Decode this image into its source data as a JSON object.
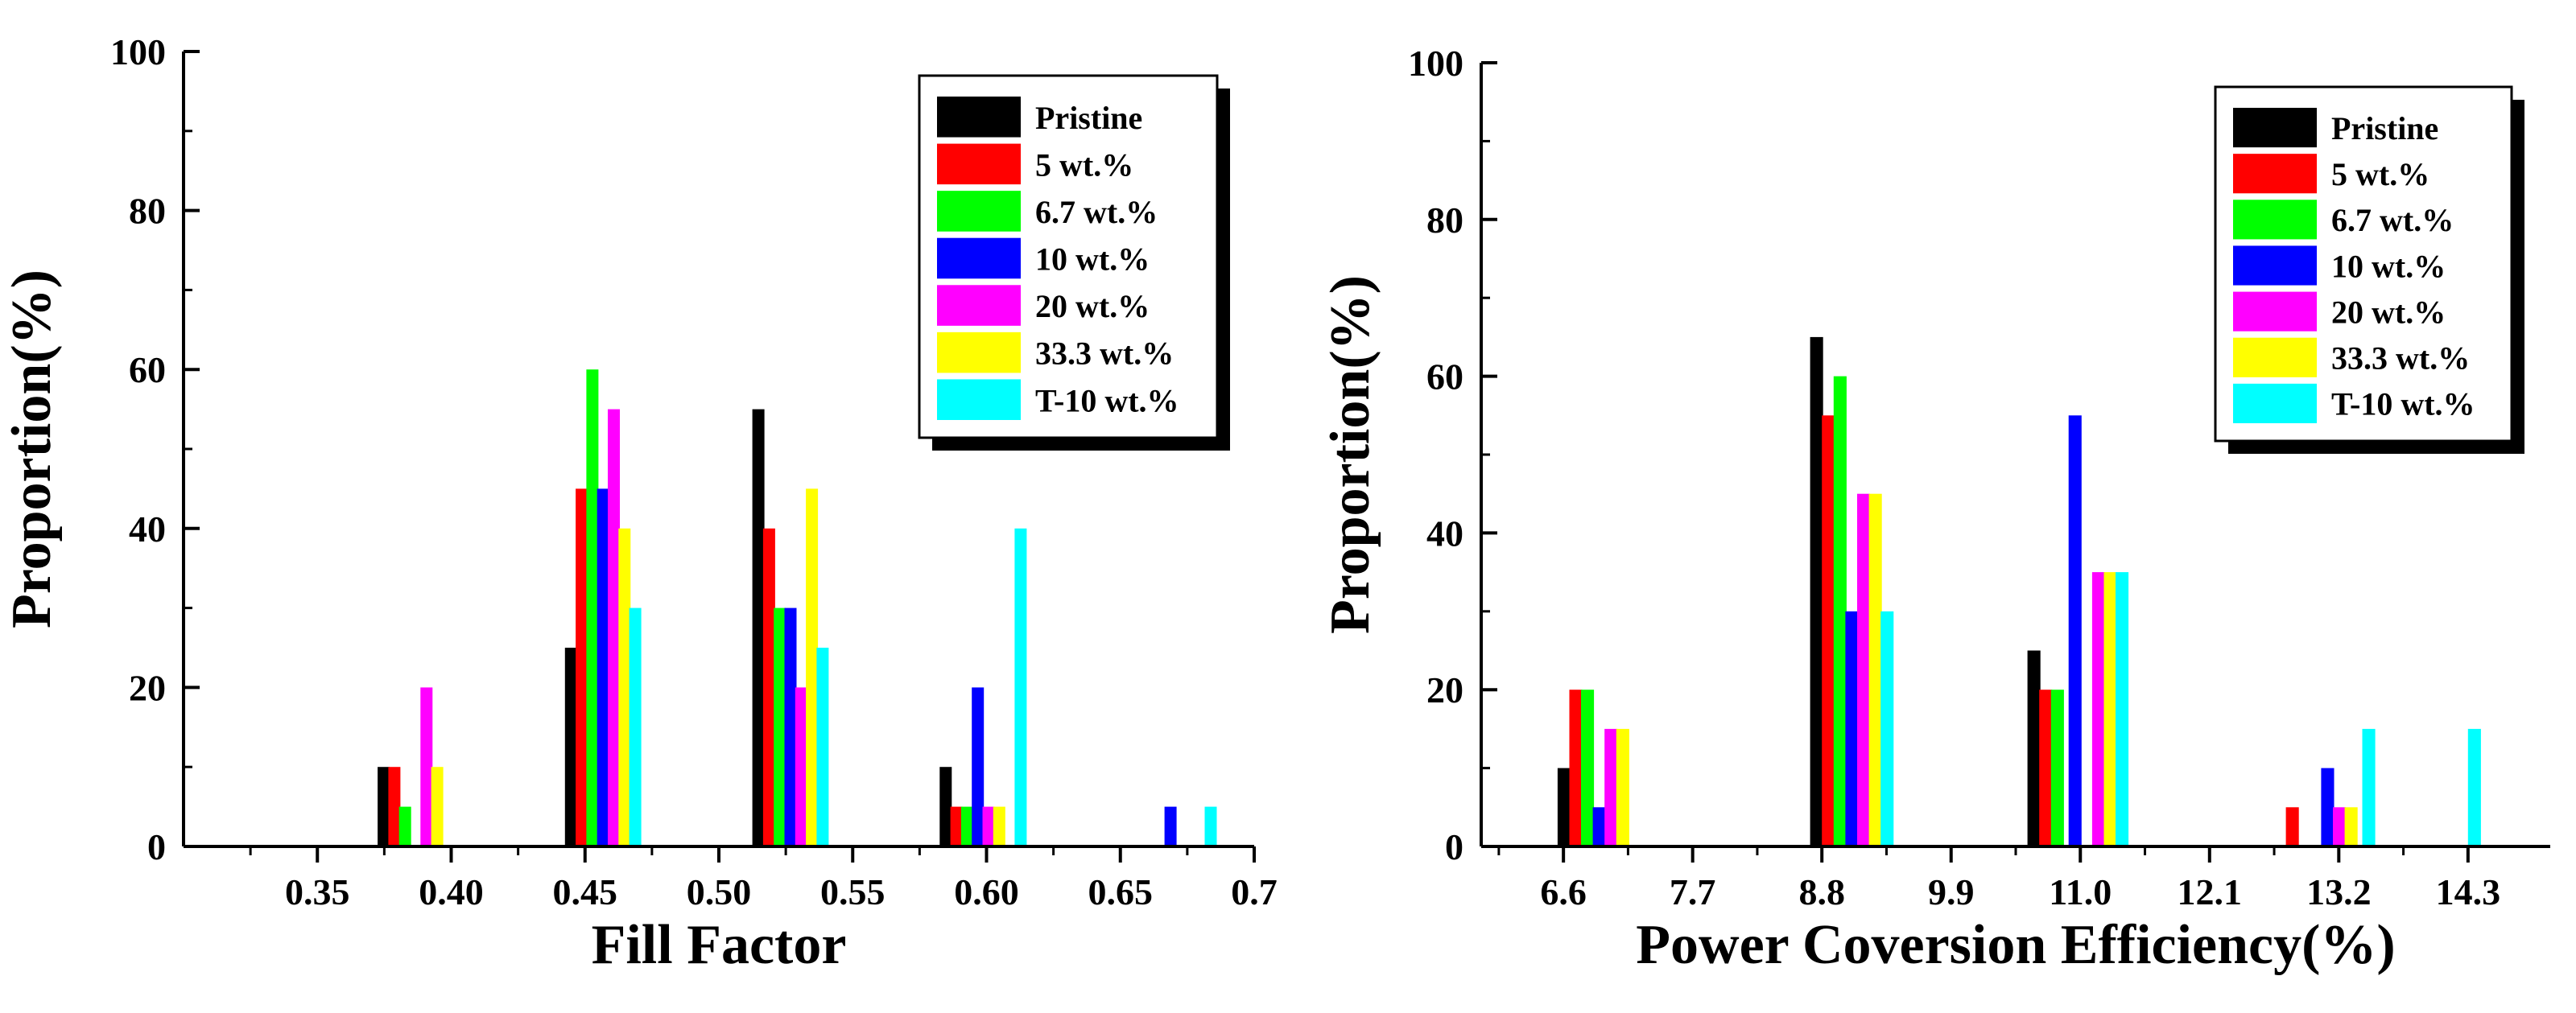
{
  "series_colors": {
    "Pristine": "#000000",
    "5 wt.%": "#ff0000",
    "6.7 wt.%": "#00ff00",
    "10 wt.%": "#0000ff",
    "20 wt.%": "#ff00ff",
    "33.3 wt.%": "#ffff00",
    "T-10 wt.%": "#00ffff"
  },
  "chart_data": [
    {
      "type": "bar",
      "xlabel": "Fill Factor",
      "ylabel": "Proportion(%)",
      "xlim": [
        0.3,
        0.7
      ],
      "ylim": [
        0,
        100
      ],
      "xticks": [
        0.35,
        0.4,
        0.45,
        0.5,
        0.55,
        0.6,
        0.65,
        0.7
      ],
      "xtick_labels": [
        "0.35",
        "0.40",
        "0.45",
        "0.50",
        "0.55",
        "0.60",
        "0.65",
        "0.7"
      ],
      "yticks": [
        0,
        20,
        40,
        60,
        80,
        100
      ],
      "ytick_labels": [
        "0",
        "20",
        "40",
        "60",
        "80",
        "100"
      ],
      "legend_position": "top-right",
      "legend": [
        "Pristine",
        "5 wt.%",
        "6.7 wt.%",
        "10 wt.%",
        "20 wt.%",
        "33.3 wt.%",
        "T-10 wt.%"
      ],
      "bar_width": 0.0045,
      "bin_starts": [
        0.37,
        0.42,
        0.47,
        0.52,
        0.57,
        0.62,
        0.67
      ],
      "series": [
        {
          "name": "Pristine",
          "x": [
            0.3725,
            0.4425,
            0.5125,
            0.5825
          ],
          "values": [
            10,
            25,
            55,
            10
          ]
        },
        {
          "name": "5 wt.%",
          "x": [
            0.3765,
            0.4465,
            0.5165,
            0.5865
          ],
          "values": [
            10,
            45,
            40,
            5
          ]
        },
        {
          "name": "6.7 wt.%",
          "x": [
            0.3805,
            0.4505,
            0.5205,
            0.5905
          ],
          "values": [
            5,
            60,
            30,
            5
          ]
        },
        {
          "name": "10 wt.%",
          "x": [
            0.4545,
            0.5245,
            0.5945,
            0.6665
          ],
          "values": [
            45,
            30,
            20,
            5
          ]
        },
        {
          "name": "20 wt.%",
          "x": [
            0.3885,
            0.4585,
            0.5285,
            0.5985
          ],
          "values": [
            20,
            55,
            20,
            5
          ]
        },
        {
          "name": "33.3 wt.%",
          "x": [
            0.3925,
            0.4625,
            0.5325,
            0.6025
          ],
          "values": [
            10,
            40,
            45,
            5
          ]
        },
        {
          "name": "T-10 wt.%",
          "x": [
            0.4665,
            0.5365,
            0.6105,
            0.6815
          ],
          "values": [
            30,
            25,
            40,
            5
          ]
        }
      ]
    },
    {
      "type": "bar",
      "xlabel": "Power Coversion Efficiency(%)",
      "ylabel": "Proportion(%)",
      "xlim": [
        5.9,
        15.0
      ],
      "ylim": [
        0,
        100
      ],
      "xticks": [
        6.6,
        7.7,
        8.8,
        9.9,
        11.0,
        12.1,
        13.2,
        14.3
      ],
      "xtick_labels": [
        "6.6",
        "7.7",
        "8.8",
        "9.9",
        "11.0",
        "12.1",
        "13.2",
        "14.3"
      ],
      "yticks": [
        0,
        20,
        40,
        60,
        80,
        100
      ],
      "ytick_labels": [
        "0",
        "20",
        "40",
        "60",
        "80",
        "100"
      ],
      "legend_position": "top-right",
      "legend": [
        "Pristine",
        "5 wt.%",
        "6.7 wt.%",
        "10 wt.%",
        "20 wt.%",
        "33.3 wt.%",
        "T-10 wt.%"
      ],
      "bar_width": 0.11,
      "series": [
        {
          "name": "Pristine",
          "x": [
            6.55,
            8.7,
            10.55
          ],
          "values": [
            10,
            65,
            25
          ]
        },
        {
          "name": "5 wt.%",
          "x": [
            6.65,
            8.8,
            10.65,
            12.75
          ],
          "values": [
            20,
            55,
            20,
            5
          ]
        },
        {
          "name": "6.7 wt.%",
          "x": [
            6.75,
            8.9,
            10.75
          ],
          "values": [
            20,
            60,
            20
          ]
        },
        {
          "name": "10 wt.%",
          "x": [
            6.85,
            9.0,
            10.9,
            13.05
          ],
          "values": [
            5,
            30,
            55,
            10
          ]
        },
        {
          "name": "20 wt.%",
          "x": [
            6.95,
            9.1,
            11.1,
            13.15
          ],
          "values": [
            15,
            45,
            35,
            5
          ]
        },
        {
          "name": "33.3 wt.%",
          "x": [
            7.05,
            9.2,
            11.2,
            13.25
          ],
          "values": [
            15,
            45,
            35,
            5
          ]
        },
        {
          "name": "T-10 wt.%",
          "x": [
            9.3,
            11.3,
            13.4,
            14.3
          ],
          "values": [
            30,
            35,
            15,
            15
          ]
        }
      ]
    }
  ]
}
